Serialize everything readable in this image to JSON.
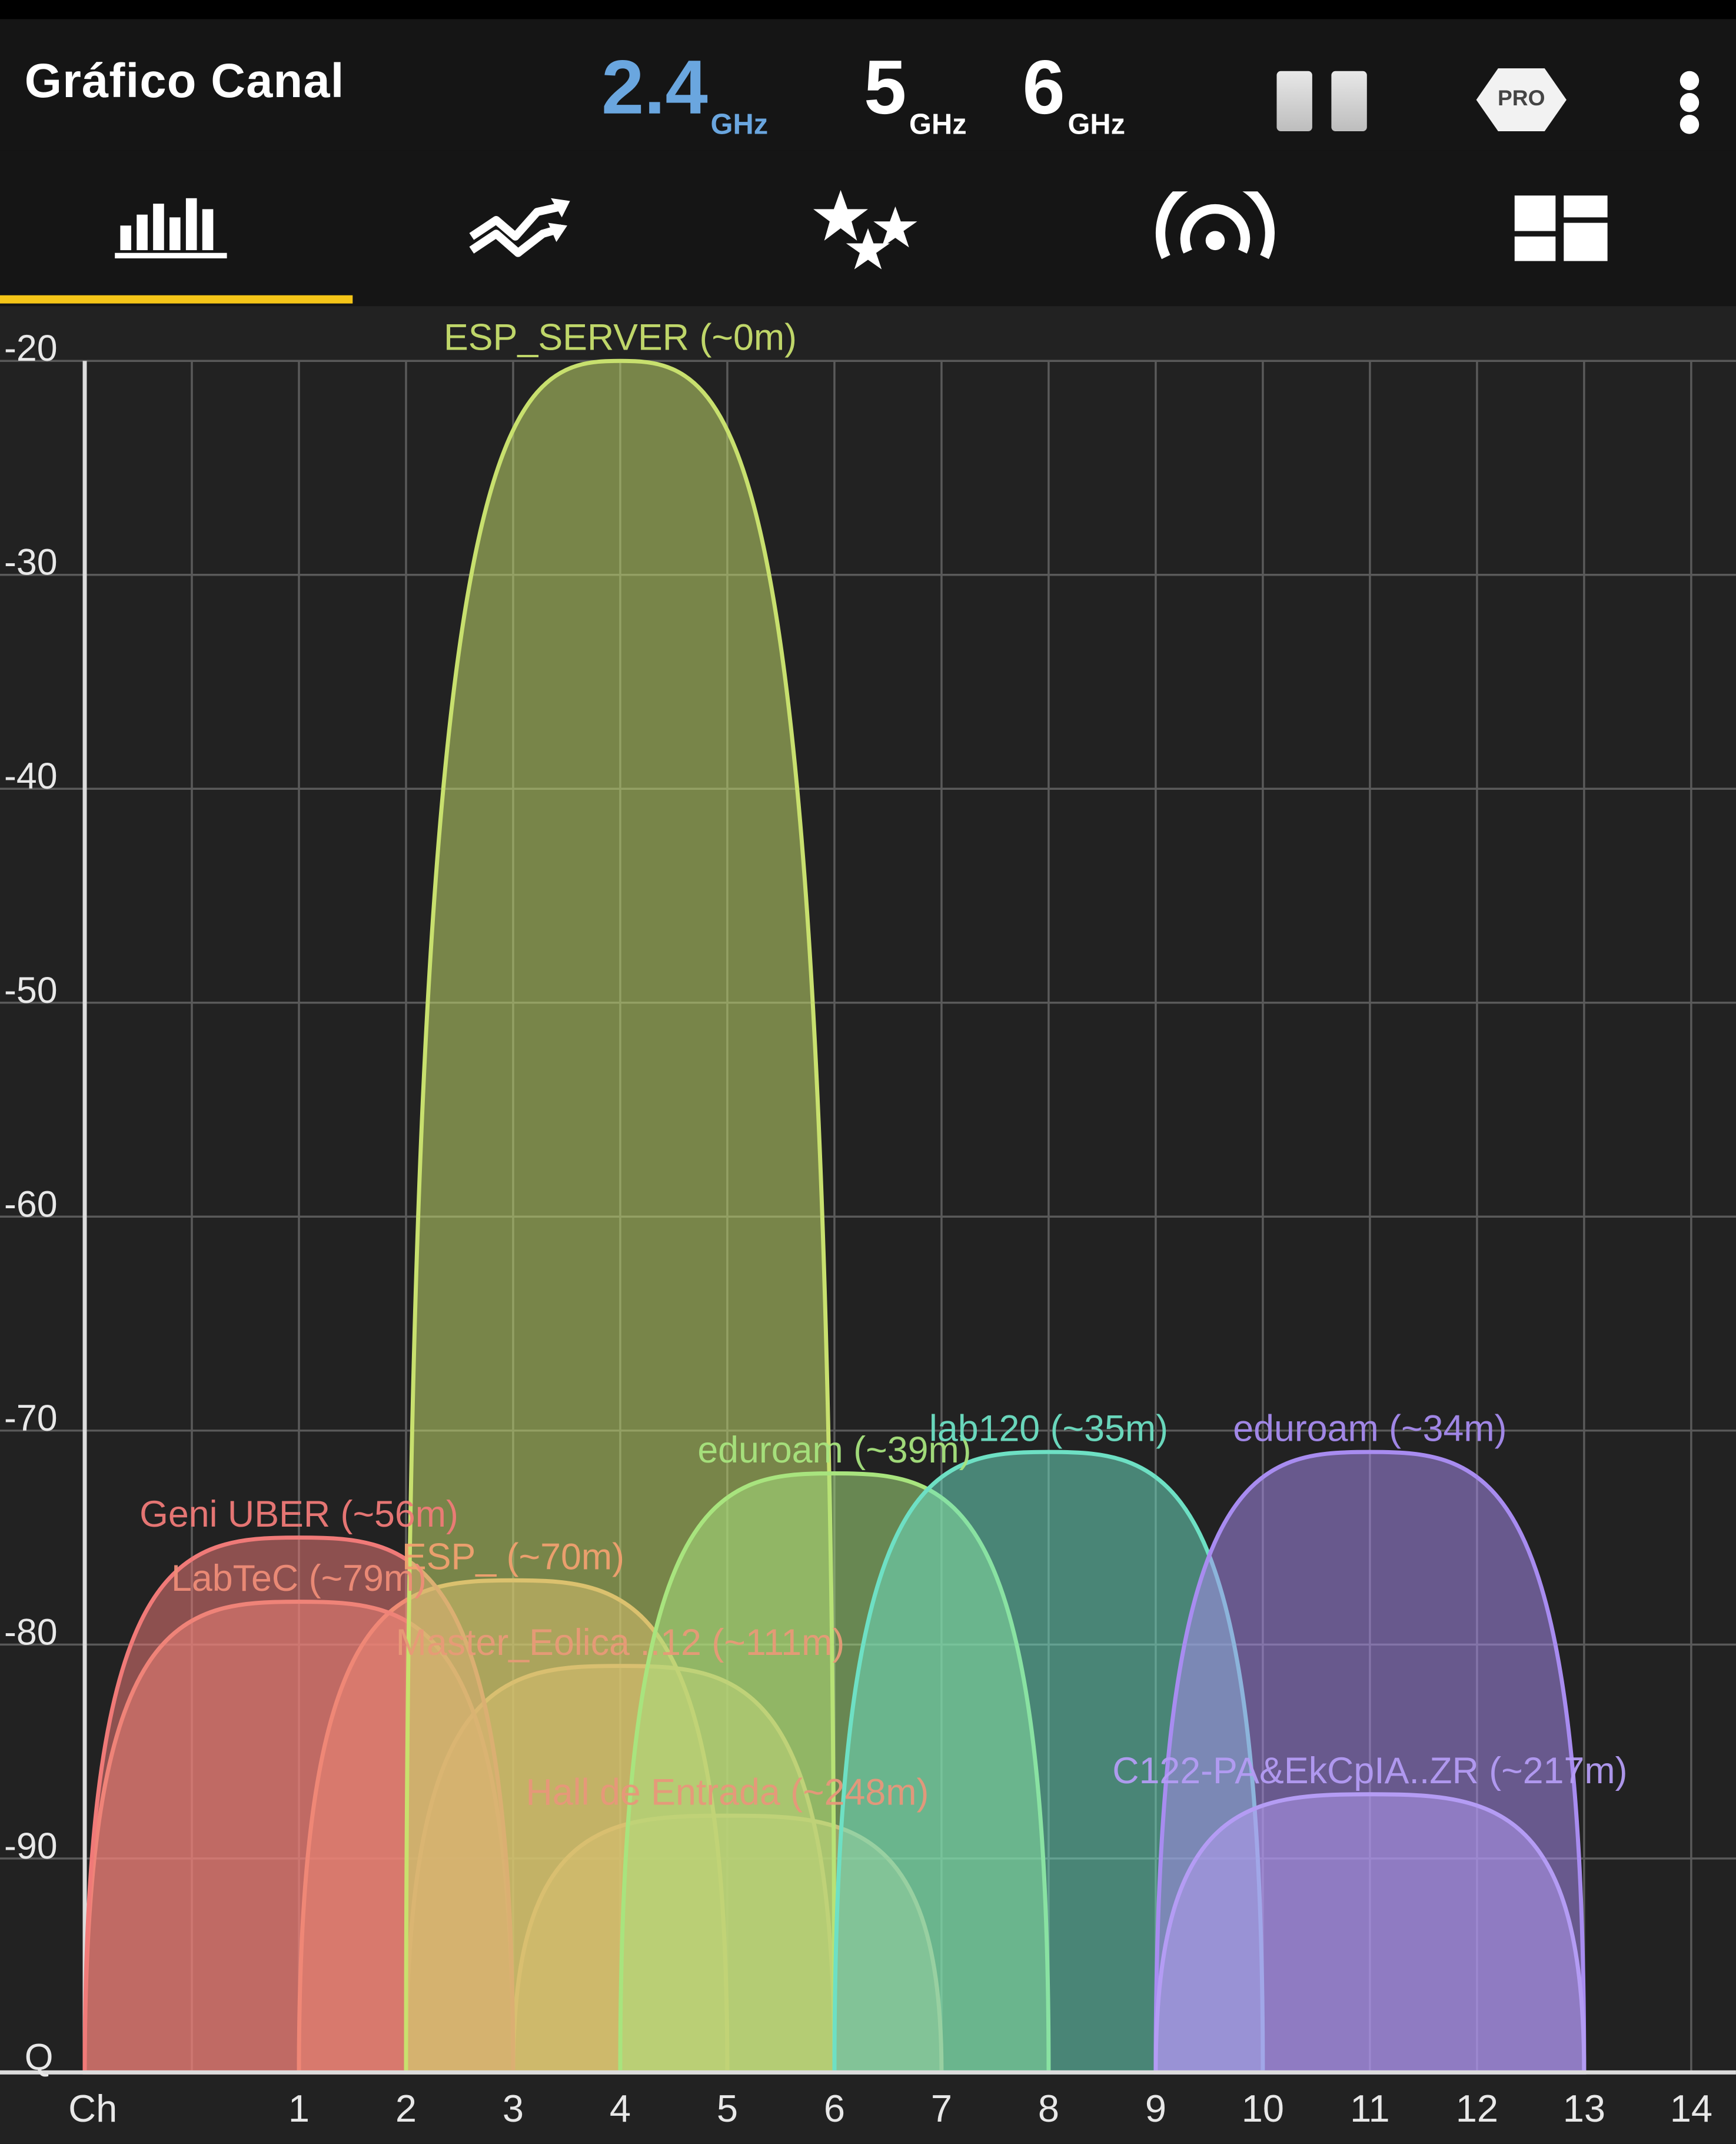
{
  "header": {
    "title": "Gráfico Canal",
    "bands": [
      {
        "value": "2.4",
        "unit": "GHz",
        "active": true
      },
      {
        "value": "5",
        "unit": "GHz",
        "active": false
      },
      {
        "value": "6",
        "unit": "GHz",
        "active": false
      }
    ],
    "pro_label": "PRO"
  },
  "tabs": [
    {
      "icon": "channel-graph-icon",
      "active": true
    },
    {
      "icon": "time-graph-icon",
      "active": false
    },
    {
      "icon": "channel-rating-icon",
      "active": false
    },
    {
      "icon": "access-points-icon",
      "active": false
    },
    {
      "icon": "dashboard-icon",
      "active": false
    }
  ],
  "colors": {
    "accent": "#f5c518",
    "active_band": "#6aa6df",
    "background": "#222222"
  },
  "chart_data": {
    "type": "area",
    "xlabel": "Ch",
    "ylabel": "",
    "y_bottom_label": "Q",
    "xlim": [
      -1,
      14
    ],
    "ylim": [
      -100,
      -20
    ],
    "x_ticks": [
      1,
      2,
      3,
      4,
      5,
      6,
      7,
      8,
      9,
      10,
      11,
      12,
      13,
      14
    ],
    "y_ticks": [
      -20,
      -30,
      -40,
      -50,
      -60,
      -70,
      -80,
      -90
    ],
    "grid": true,
    "series": [
      {
        "name": "Hall de Entrada (~248m)",
        "channel": 5,
        "signal": -88,
        "color": "#e8977a"
      },
      {
        "name": "Master_Eolica ..12 (~111m)",
        "channel": 4,
        "signal": -81,
        "color": "#e89a77"
      },
      {
        "name": "ESP_ (~70m)",
        "channel": 3,
        "signal": -77,
        "color": "#f0a070"
      },
      {
        "name": "LabTeC (~79m)",
        "channel": 1,
        "signal": -78,
        "color": "#ee8c77"
      },
      {
        "name": "Geni UBER (~56m)",
        "channel": 1,
        "signal": -75,
        "color": "#f07a78"
      },
      {
        "name": "ESP_SERVER (~0m)",
        "channel": 4,
        "signal": -20,
        "color": "#c8e06e"
      },
      {
        "name": "eduroam (~39m)",
        "channel": 6,
        "signal": -72,
        "color": "#a8e47e"
      },
      {
        "name": "lab120 (~35m)",
        "channel": 8,
        "signal": -71,
        "color": "#6ee0c4"
      },
      {
        "name": "eduroam (~34m)",
        "channel": 11,
        "signal": -71,
        "color": "#a88cf0"
      },
      {
        "name": "C122-PA&EkCpIA..ZR (~217m)",
        "channel": 11,
        "signal": -87,
        "color": "#b49cf4"
      }
    ]
  }
}
